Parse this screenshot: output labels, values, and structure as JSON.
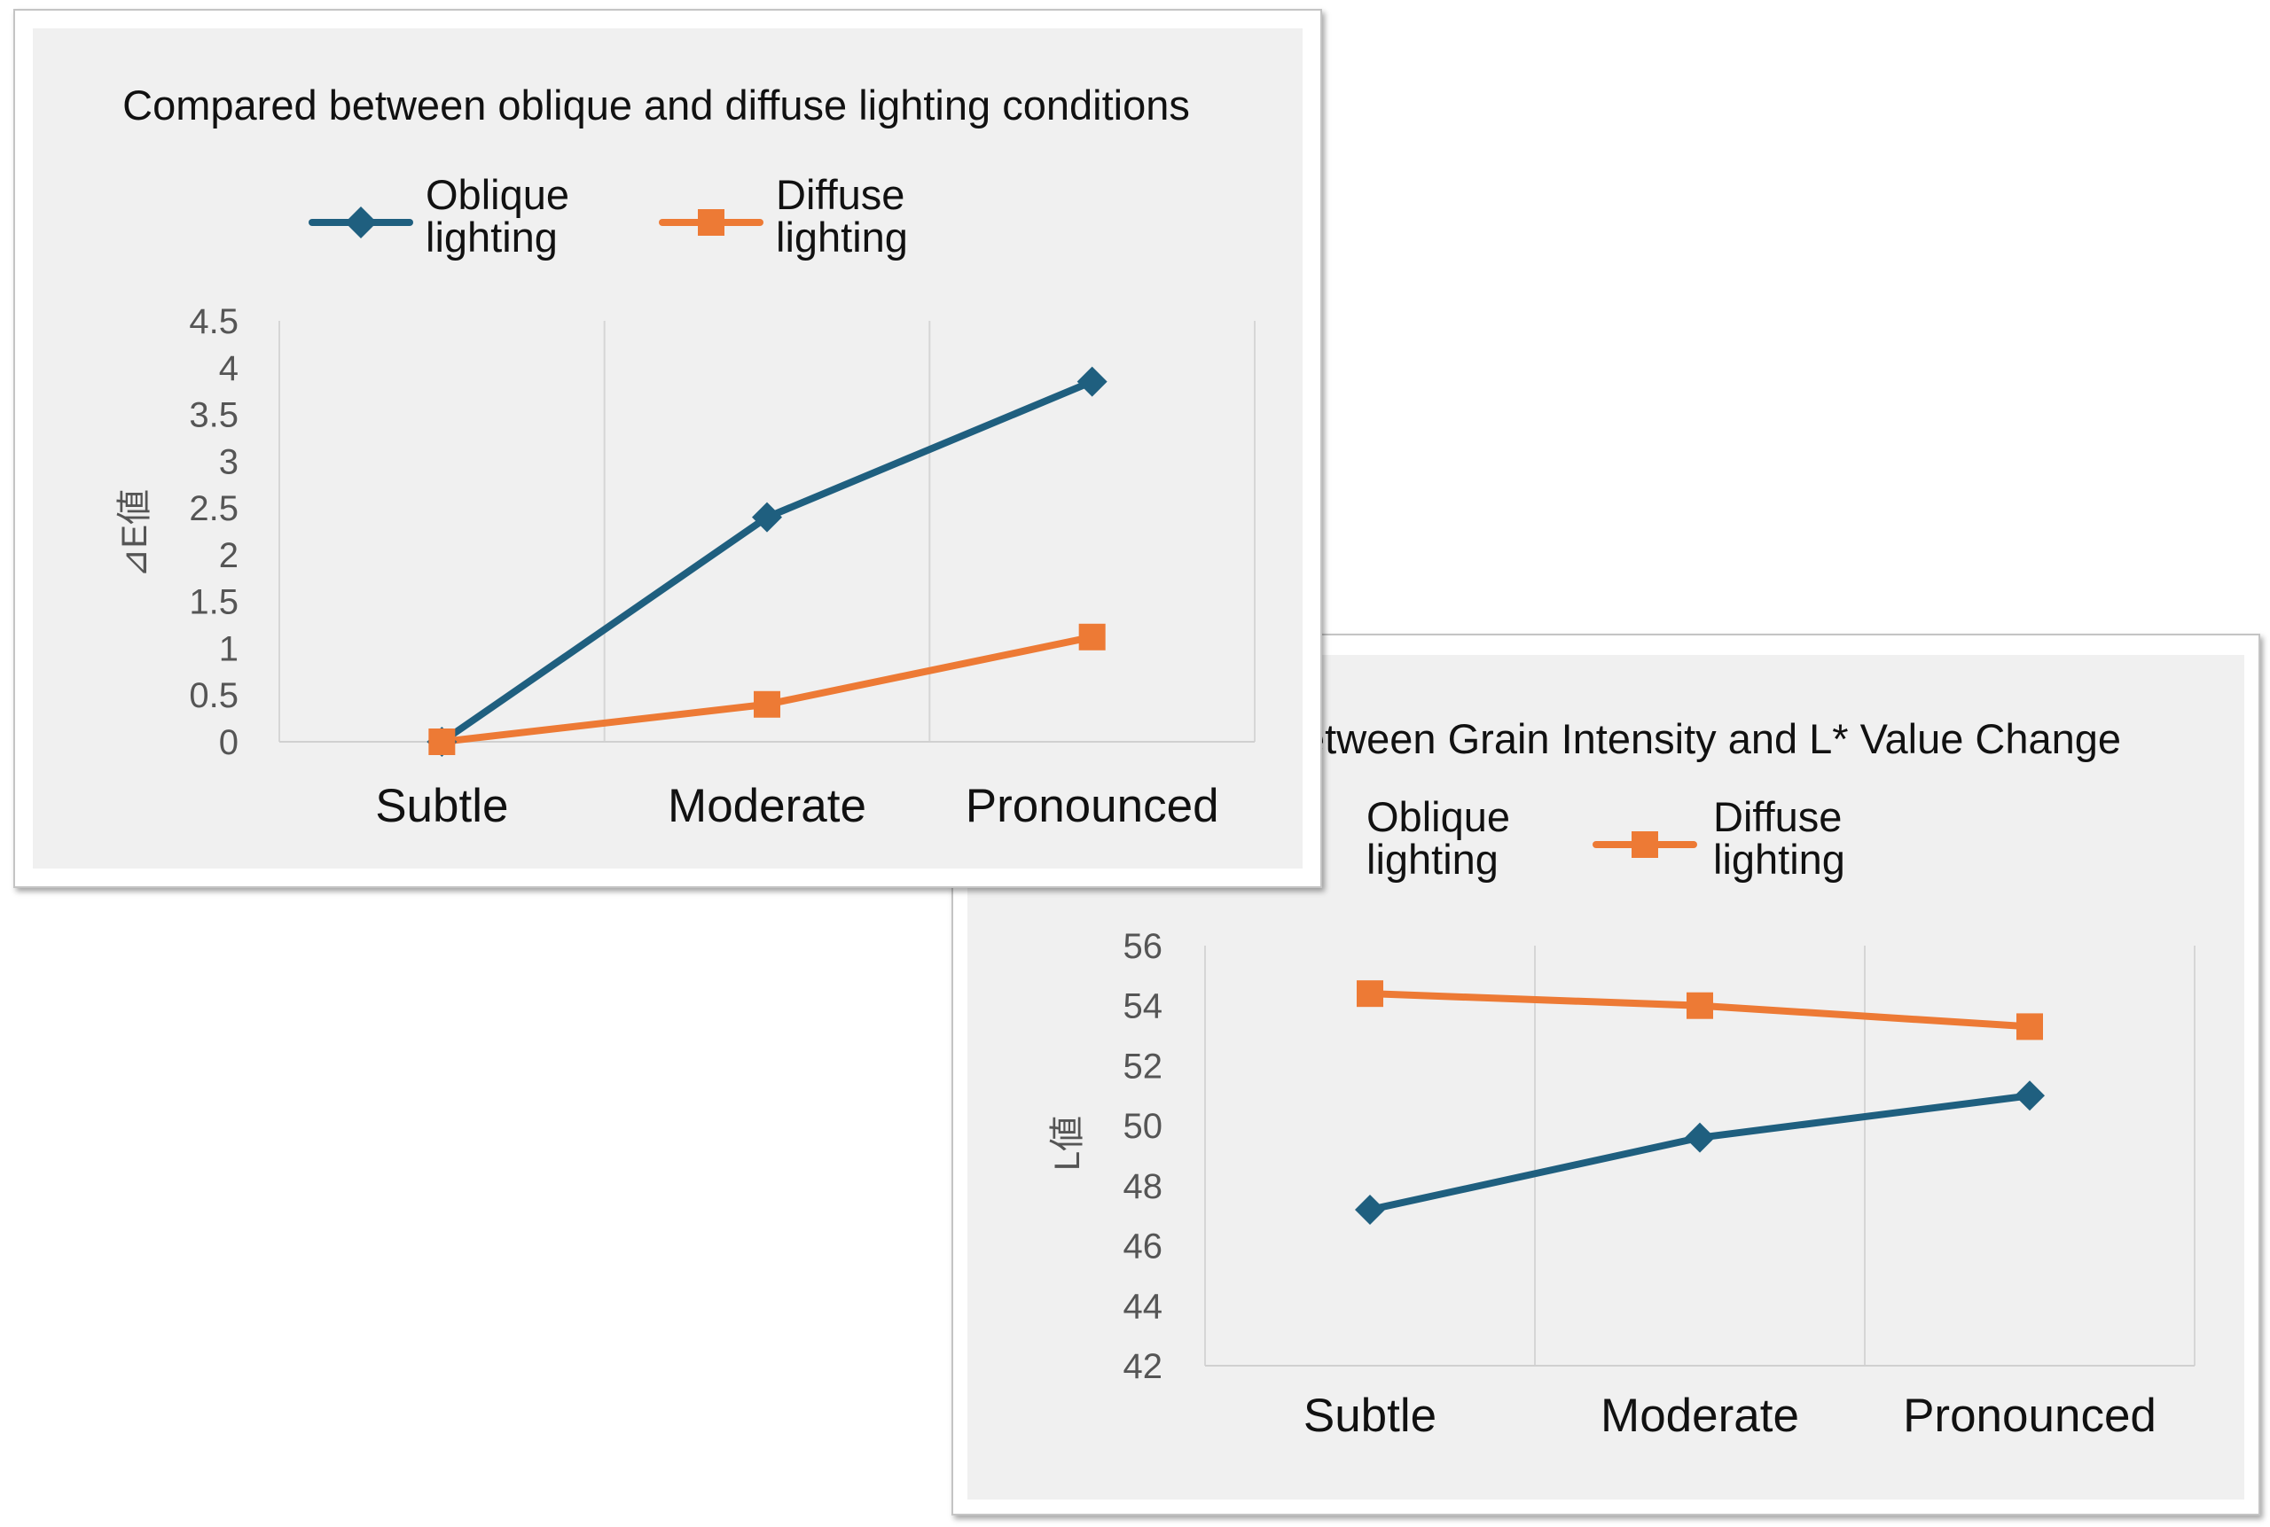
{
  "chart_data": [
    {
      "type": "line",
      "title": "Compared between oblique and diffuse lighting conditions",
      "xlabel": "",
      "ylabel": "⊿E値",
      "categories": [
        "Subtle",
        "Moderate",
        "Pronounced"
      ],
      "ylim": [
        0,
        4.5
      ],
      "yticks": [
        "0",
        "0.5",
        "1",
        "1.5",
        "2",
        "2.5",
        "3",
        "3.5",
        "4",
        "4.5"
      ],
      "grid": "vertical",
      "legend": "top",
      "series": [
        {
          "name": "Oblique lighting",
          "name_lines": [
            "Oblique",
            "lighting"
          ],
          "values": [
            0,
            2.4,
            3.85
          ],
          "color": "#1f5f7f",
          "marker": "diamond"
        },
        {
          "name": "Diffuse lighting",
          "name_lines": [
            "Diffuse",
            "lighting"
          ],
          "values": [
            0,
            0.4,
            1.12
          ],
          "color": "#ed7a35",
          "marker": "square"
        }
      ]
    },
    {
      "type": "line",
      "title": "etween Grain Intensity and L* Value Change",
      "xlabel": "",
      "ylabel": "L値",
      "categories": [
        "Subtle",
        "Moderate",
        "Pronounced"
      ],
      "ylim": [
        42,
        56
      ],
      "yticks": [
        "42",
        "44",
        "46",
        "48",
        "50",
        "52",
        "54",
        "56"
      ],
      "grid": "vertical",
      "legend": "top",
      "series": [
        {
          "name": "Oblique lighting",
          "name_lines": [
            "Oblique",
            "lighting"
          ],
          "values": [
            47.2,
            49.6,
            51.0
          ],
          "color": "#1f5f7f",
          "marker": "diamond"
        },
        {
          "name": "Diffuse lighting",
          "name_lines": [
            "Diffuse",
            "lighting"
          ],
          "values": [
            54.4,
            54.0,
            53.3
          ],
          "color": "#ed7a35",
          "marker": "square"
        }
      ]
    }
  ]
}
